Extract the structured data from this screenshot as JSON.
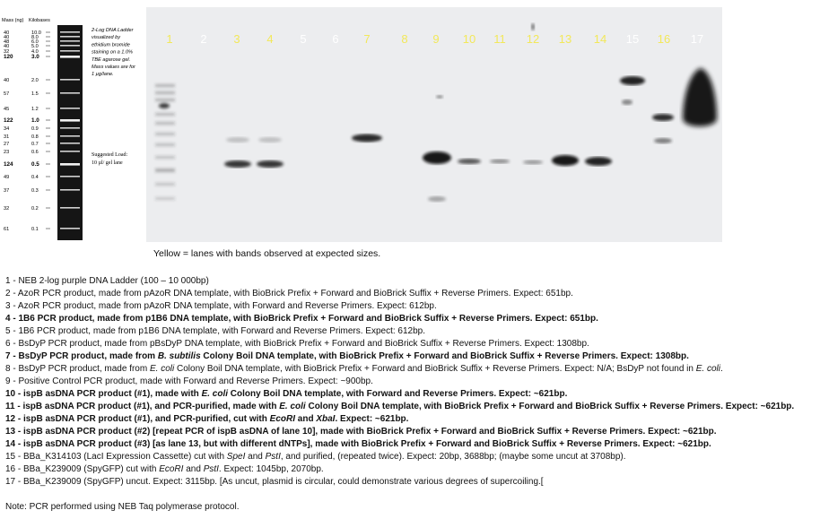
{
  "ladder": {
    "header_mass": "Mass (ng)",
    "header_kb": "Kilobases",
    "description": [
      "2-Log DNA Ladder",
      "visualized by",
      "ethidium bromide",
      "staining on a 1.0%",
      "TBE agarose gel.",
      "Mass values are for",
      "1 µg/lane."
    ],
    "suggested_load": [
      "Suggested Load:",
      "10 µl/ gel lane"
    ],
    "bands": [
      {
        "mass": "40",
        "kb": "10.0"
      },
      {
        "mass": "40",
        "kb": "8.0"
      },
      {
        "mass": "48",
        "kb": "6.0"
      },
      {
        "mass": "40",
        "kb": "5.0"
      },
      {
        "mass": "32",
        "kb": "4.0"
      },
      {
        "mass": "120",
        "kb": "3.0",
        "bold": true
      },
      {
        "mass": "40",
        "kb": "2.0"
      },
      {
        "mass": "57",
        "kb": "1.5"
      },
      {
        "mass": "45",
        "kb": "1.2"
      },
      {
        "mass": "122",
        "kb": "1.0",
        "bold": true
      },
      {
        "mass": "34",
        "kb": "0.9"
      },
      {
        "mass": "31",
        "kb": "0.8"
      },
      {
        "mass": "27",
        "kb": "0.7"
      },
      {
        "mass": "23",
        "kb": "0.6"
      },
      {
        "mass": "124",
        "kb": "0.5",
        "bold": true
      },
      {
        "mass": "49",
        "kb": "0.4"
      },
      {
        "mass": "37",
        "kb": "0.3"
      },
      {
        "mass": "32",
        "kb": "0.2"
      },
      {
        "mass": "61",
        "kb": "0.1"
      }
    ]
  },
  "gel": {
    "lanes": [
      {
        "label": "1",
        "highlighted": true
      },
      {
        "label": "2",
        "highlighted": false
      },
      {
        "label": "3",
        "highlighted": true
      },
      {
        "label": "4",
        "highlighted": true
      },
      {
        "label": "5",
        "highlighted": false
      },
      {
        "label": "6",
        "highlighted": false
      },
      {
        "label": "7",
        "highlighted": true
      },
      {
        "label": "8",
        "highlighted": true
      },
      {
        "label": "9",
        "highlighted": true
      },
      {
        "label": "10",
        "highlighted": true
      },
      {
        "label": "11",
        "highlighted": true
      },
      {
        "label": "12",
        "highlighted": true
      },
      {
        "label": "13",
        "highlighted": true
      },
      {
        "label": "14",
        "highlighted": true
      },
      {
        "label": "15",
        "highlighted": false
      },
      {
        "label": "16",
        "highlighted": true
      },
      {
        "label": "17",
        "highlighted": false
      }
    ],
    "highlight_color": "#f2e85a",
    "normal_label_color": "#ffffff",
    "gel_color": "#ecedef",
    "band_color": "#141414"
  },
  "caption": "Yellow  = lanes with bands observed at expected sizes.",
  "legend": [
    {
      "parts": [
        {
          "t": "1 - NEB 2-log purple DNA Ladder (100 – 10 000bp)"
        }
      ]
    },
    {
      "parts": [
        {
          "t": "2 - AzoR PCR product, made from pAzoR DNA template, with BioBrick Prefix + Forward and BioBrick Suffix + Reverse Primers. Expect: 651bp."
        }
      ]
    },
    {
      "parts": [
        {
          "t": "3 - AzoR PCR product, made from pAzoR DNA template, with Forward and Reverse Primers. Expect: 612bp."
        }
      ]
    },
    {
      "bold": true,
      "parts": [
        {
          "t": "4 - 1B6 PCR product, made from p1B6 DNA template, with BioBrick Prefix + Forward and BioBrick Suffix + Reverse Primers. Expect: 651bp."
        }
      ]
    },
    {
      "parts": [
        {
          "t": "5 - 1B6 PCR product, made from p1B6 DNA template, with Forward and Reverse Primers. Expect: 612bp."
        }
      ]
    },
    {
      "parts": [
        {
          "t": "6 - BsDyP PCR product, made from pBsDyP DNA template, with BioBrick Prefix + Forward and BioBrick Suffix + Reverse Primers. Expect: 1308bp."
        }
      ]
    },
    {
      "bold": true,
      "parts": [
        {
          "t": "7 - BsDyP PCR product, made from "
        },
        {
          "t": "B. subtilis",
          "i": true
        },
        {
          "t": " Colony Boil DNA template, with BioBrick Prefix + Forward and BioBrick Suffix + Reverse Primers. Expect: 1308bp."
        }
      ]
    },
    {
      "parts": [
        {
          "t": "8 - BsDyP PCR product, made from "
        },
        {
          "t": "E. coli",
          "i": true
        },
        {
          "t": " Colony Boil DNA template, with BioBrick Prefix + Forward and BioBrick Suffix + Reverse Primers. Expect: N/A; BsDyP not found in "
        },
        {
          "t": "E. coli",
          "i": true
        },
        {
          "t": "."
        }
      ]
    },
    {
      "parts": [
        {
          "t": "9 - Positive Control PCR product, made with Forward and Reverse Primers. Expect: ~900bp."
        }
      ]
    },
    {
      "bold": true,
      "parts": [
        {
          "t": "10 - ispB asDNA PCR product (#1), made with "
        },
        {
          "t": "E. coli",
          "i": true
        },
        {
          "t": " Colony Boil DNA template, with Forward and Reverse Primers. Expect: ~621bp."
        }
      ]
    },
    {
      "bold": true,
      "parts": [
        {
          "t": "11 - ispB asDNA PCR product (#1), and PCR-purified, made with "
        },
        {
          "t": "E. coli",
          "i": true
        },
        {
          "t": " Colony Boil DNA template, with BioBrick Prefix + Forward and BioBrick Suffix + Reverse Primers. Expect: ~621bp."
        }
      ]
    },
    {
      "bold": true,
      "parts": [
        {
          "t": "12 - ispB asDNA PCR product (#1), and PCR-purified, cut with "
        },
        {
          "t": "EcoRI",
          "i": true
        },
        {
          "t": " and "
        },
        {
          "t": "XbaI",
          "i": true
        },
        {
          "t": ". Expect: ~621bp."
        }
      ]
    },
    {
      "bold": true,
      "parts": [
        {
          "t": "13 - ispB asDNA PCR product (#2) [repeat PCR of ispB asDNA of lane 10], made with BioBrick Prefix + Forward and BioBrick Suffix + Reverse Primers. Expect: ~621bp."
        }
      ]
    },
    {
      "bold": true,
      "parts": [
        {
          "t": "14 - ispB asDNA PCR product (#3) [as lane 13, but with different dNTPs], made with BioBrick Prefix + Forward and BioBrick Suffix + Reverse Primers. Expect: ~621bp."
        }
      ]
    },
    {
      "parts": [
        {
          "t": "15 - BBa_K314103 (LacI Expression Cassette) cut with "
        },
        {
          "t": "SpeI",
          "i": true
        },
        {
          "t": " and "
        },
        {
          "t": "PstI",
          "i": true
        },
        {
          "t": ", and purified, (repeated twice). Expect: 20bp, 3688bp; (maybe some uncut at 3708bp)."
        }
      ]
    },
    {
      "parts": [
        {
          "t": "16 - BBa_K239009 (SpyGFP) cut with "
        },
        {
          "t": "EcoRI",
          "i": true
        },
        {
          "t": " and "
        },
        {
          "t": "PstI",
          "i": true
        },
        {
          "t": ". Expect: 1045bp, 2070bp."
        }
      ]
    },
    {
      "parts": [
        {
          "t": "17 - BBa_K239009 (SpyGFP) uncut. Expect: 3115bp. [As uncut, plasmid is circular, could demonstrate various degrees of supercoiling.["
        }
      ]
    }
  ],
  "note": "Note: PCR performed using NEB Taq polymerase protocol."
}
